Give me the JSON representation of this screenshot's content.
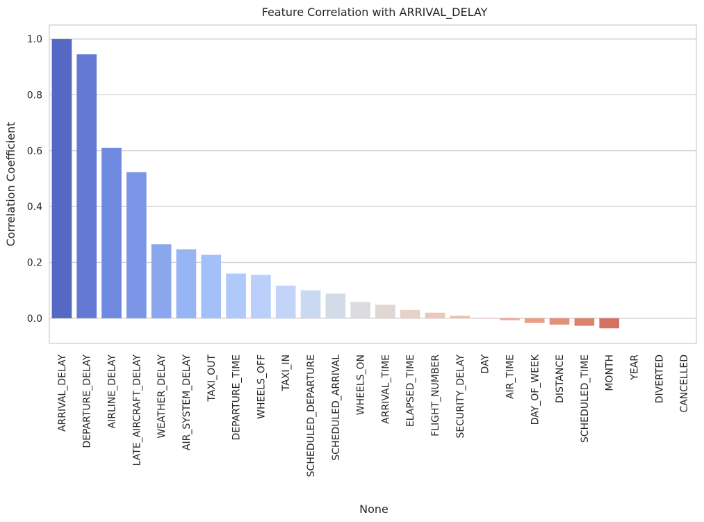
{
  "chart_data": {
    "type": "bar",
    "title": "Feature Correlation with ARRIVAL_DELAY",
    "xlabel": "None",
    "ylabel": "Correlation Coefficient",
    "ylim": [
      -0.09,
      1.05
    ],
    "yticks": [
      "0.0",
      "0.2",
      "0.4",
      "0.6",
      "0.8",
      "1.0"
    ],
    "grid": "horizontal",
    "palette": "coolwarm",
    "categories": [
      "ARRIVAL_DELAY",
      "DEPARTURE_DELAY",
      "AIRLINE_DELAY",
      "LATE_AIRCRAFT_DELAY",
      "WEATHER_DELAY",
      "AIR_SYSTEM_DELAY",
      "TAXI_OUT",
      "DEPARTURE_TIME",
      "WHEELS_OFF",
      "TAXI_IN",
      "SCHEDULED_DEPARTURE",
      "SCHEDULED_ARRIVAL",
      "WHEELS_ON",
      "ARRIVAL_TIME",
      "ELAPSED_TIME",
      "FLIGHT_NUMBER",
      "SECURITY_DELAY",
      "DAY",
      "AIR_TIME",
      "DAY_OF_WEEK",
      "DISTANCE",
      "SCHEDULED_TIME",
      "MONTH",
      "YEAR",
      "DIVERTED",
      "CANCELLED"
    ],
    "values": [
      1.0,
      0.945,
      0.61,
      0.523,
      0.265,
      0.247,
      0.227,
      0.16,
      0.155,
      0.117,
      0.1,
      0.088,
      0.058,
      0.048,
      0.03,
      0.02,
      0.009,
      0.002,
      -0.007,
      -0.017,
      -0.023,
      -0.027,
      -0.036,
      0.0,
      0.0,
      0.0
    ],
    "colors": [
      "#5468c4",
      "#6479d3",
      "#6f8ae0",
      "#7b96e6",
      "#8aa7ed",
      "#97b5f4",
      "#a3c1f8",
      "#afcafa",
      "#bacffa",
      "#c4d4f8",
      "#cbd8f2",
      "#d3dae8",
      "#dcdbde",
      "#e0d7d3",
      "#e6d2c6",
      "#ebc8b7",
      "#f0c1ad",
      "#f2b7a0",
      "#efab92",
      "#e99f85",
      "#e19179",
      "#db836c",
      "#d3735f",
      "#cc6456",
      "#c4564f",
      "#bb4848"
    ]
  }
}
